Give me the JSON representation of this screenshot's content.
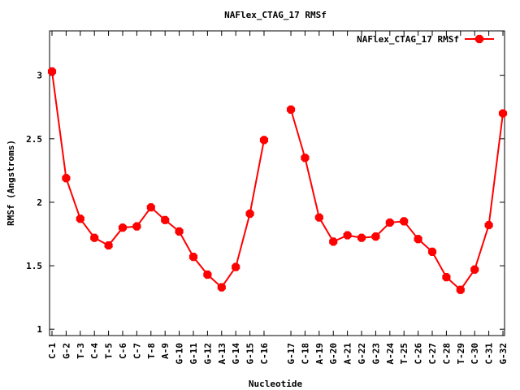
{
  "chart_data": {
    "type": "line",
    "title": "NAFlex_CTAG_17 RMSf",
    "xlabel": "Nucleotide",
    "ylabel": "RMSf (Angstroms)",
    "ylim": [
      0.95,
      3.35
    ],
    "yticks": [
      "1",
      "1.5",
      "2",
      "2.5",
      "3"
    ],
    "legend_position": "top-right",
    "grid": false,
    "categories": [
      "C-1",
      "G-2",
      "T-3",
      "C-4",
      "T-5",
      "C-6",
      "C-7",
      "T-8",
      "A-9",
      "G-10",
      "G-11",
      "G-12",
      "A-13",
      "G-14",
      "G-15",
      "C-16",
      "G-17",
      "C-18",
      "A-19",
      "G-20",
      "A-21",
      "G-22",
      "G-23",
      "A-24",
      "T-25",
      "C-26",
      "C-27",
      "C-28",
      "T-29",
      "C-30",
      "C-31",
      "G-32"
    ],
    "series": [
      {
        "name": "NAFlex_CTAG_17 RMSf",
        "color": "#ff0000",
        "values": [
          3.03,
          2.19,
          1.87,
          1.72,
          1.66,
          1.8,
          1.81,
          1.96,
          1.86,
          1.77,
          1.57,
          1.43,
          1.33,
          1.49,
          1.91,
          2.49,
          2.73,
          2.35,
          1.88,
          1.69,
          1.74,
          1.72,
          1.73,
          1.84,
          1.85,
          1.71,
          1.61,
          1.41,
          1.31,
          1.47,
          1.82,
          2.7
        ],
        "segments": [
          [
            0,
            15
          ],
          [
            16,
            31
          ]
        ]
      }
    ]
  }
}
